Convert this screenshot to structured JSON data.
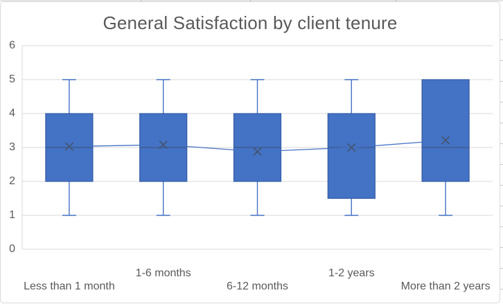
{
  "chart_data": {
    "type": "box",
    "title": "General Satisfaction by client tenure",
    "xlabel": "",
    "ylabel": "",
    "ylim": [
      0,
      6
    ],
    "yticks": [
      0,
      1,
      2,
      3,
      4,
      5,
      6
    ],
    "grid": "horizontal",
    "legend_position": "none",
    "mean_marker": "x",
    "mean_line_shown": true,
    "categories": [
      "Less than 1 month",
      "1-6 months",
      "6-12 months",
      "1-2 years",
      "More than 2 years"
    ],
    "boxes": [
      {
        "category": "Less than 1 month",
        "min": 1,
        "q1": 2,
        "median": 3,
        "q3": 4,
        "max": 5,
        "mean": 3.03
      },
      {
        "category": "1-6 months",
        "min": 1,
        "q1": 2,
        "median": 3,
        "q3": 4,
        "max": 5,
        "mean": 3.08
      },
      {
        "category": "6-12 months",
        "min": 1,
        "q1": 2,
        "median": 3,
        "q3": 4,
        "max": 5,
        "mean": 2.88
      },
      {
        "category": "1-2 years",
        "min": 1,
        "q1": 1.5,
        "median": 3,
        "q3": 4,
        "max": 5,
        "mean": 3.0
      },
      {
        "category": "More than 2 years",
        "min": 1,
        "q1": 2,
        "median": 3,
        "q3": 5,
        "max": 5,
        "mean": 3.21
      }
    ]
  },
  "colors": {
    "box_fill": "#4472C4",
    "box_border": "#335AA6",
    "whisker": "#4472C4",
    "median_line": "#3D5787",
    "mean_marker": "#44546A",
    "mean_line": "#4472C4",
    "gridline": "#D9D9D9",
    "axis_line": "#D9D9D9",
    "text": "#595959",
    "frame_border": "#D9D9D9"
  }
}
